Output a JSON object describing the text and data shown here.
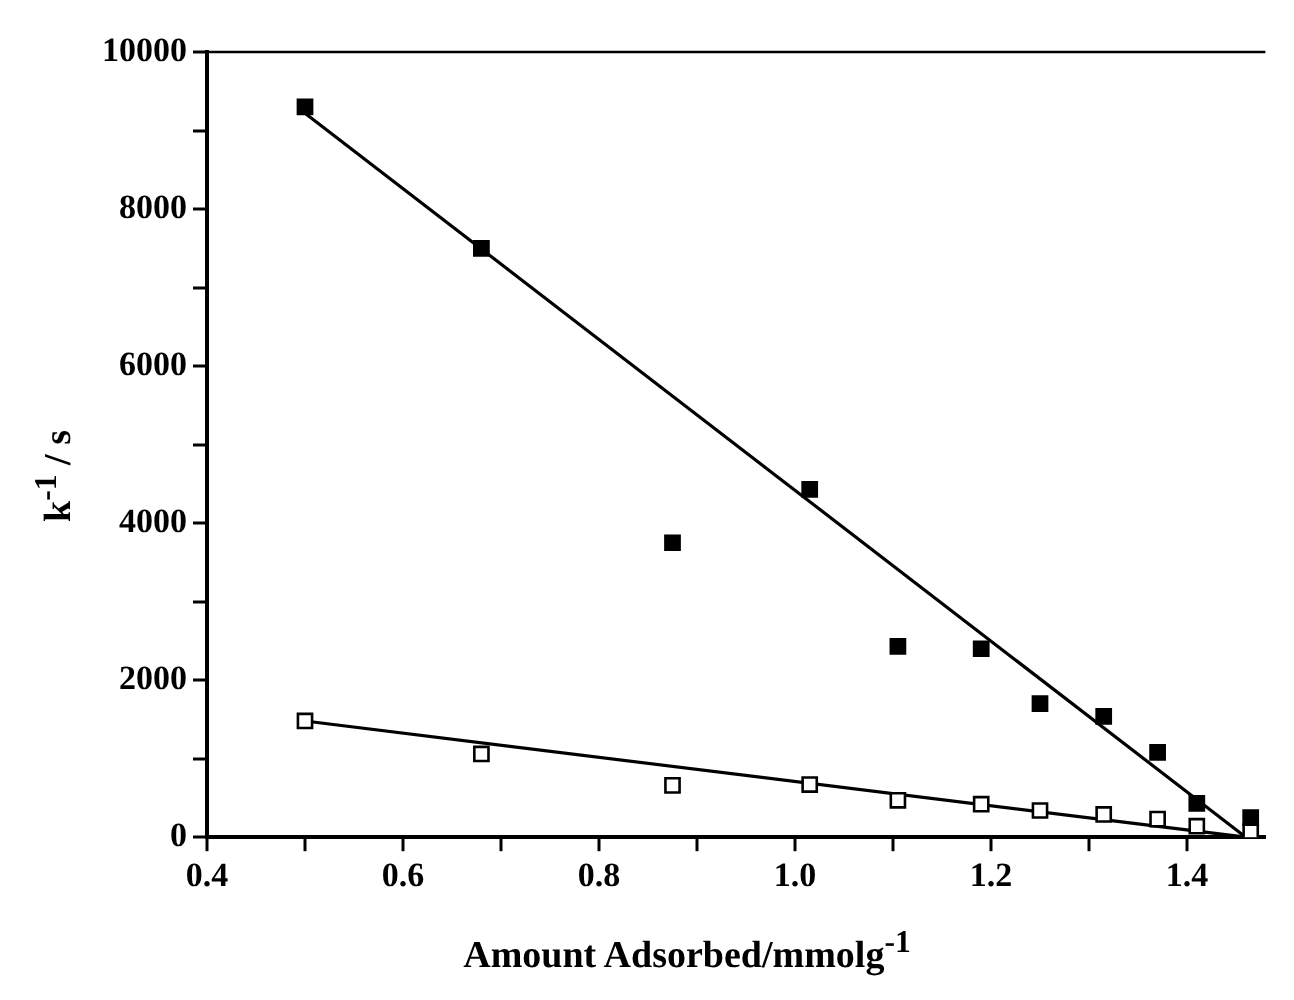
{
  "chart_data": {
    "type": "scatter",
    "xlabel": "Amount Adsorbed/mmolg$^{-1}$",
    "ylabel": "k$^{-1}$ / s",
    "xlim": [
      0.4,
      1.48
    ],
    "xticks": [
      0.4,
      {
        "value": 0.5,
        "label": null
      },
      0.6,
      {
        "value": 0.7,
        "label": null
      },
      0.8,
      {
        "value": 0.9,
        "label": null
      },
      "1.0",
      {
        "value": 1.1,
        "label": null
      },
      1.2,
      {
        "value": 1.3,
        "label": null
      },
      1.4
    ],
    "ylim": [
      0,
      10000
    ],
    "yticks": [
      0,
      {
        "value": 1000,
        "label": null
      },
      2000,
      {
        "value": 3000,
        "label": null
      },
      4000,
      {
        "value": 5000,
        "label": null
      },
      6000,
      {
        "value": 7000,
        "label": null
      },
      8000,
      {
        "value": 9000,
        "label": null
      },
      10000
    ],
    "grid": false,
    "legend": false,
    "marker": "square",
    "series": [
      {
        "type": "scatter",
        "color": "#000000",
        "x": [
          0.5,
          0.68,
          0.875,
          1.015,
          1.105,
          1.19,
          1.25,
          1.315,
          1.37,
          1.41,
          1.465
        ],
        "values": [
          9300,
          7500,
          3750,
          4430,
          2430,
          2400,
          1700,
          1540,
          1080,
          430,
          250
        ]
      },
      {
        "type": "scatter",
        "color": "#000000",
        "x": [
          0.5,
          0.68,
          0.875,
          1.015,
          1.105,
          1.19,
          1.25,
          1.315,
          1.37,
          1.41,
          1.465
        ],
        "values": [
          1480,
          1060,
          660,
          670,
          470,
          420,
          340,
          290,
          230,
          140,
          70
        ]
      },
      {
        "type": "line",
        "color": "#000000",
        "marker": "none",
        "x": [
          0.5,
          1.46
        ],
        "values": [
          9220,
          0
        ]
      },
      {
        "type": "line",
        "color": "#000000",
        "marker": "none",
        "x": [
          0.5,
          1.46
        ],
        "values": [
          1480,
          0
        ]
      }
    ]
  }
}
